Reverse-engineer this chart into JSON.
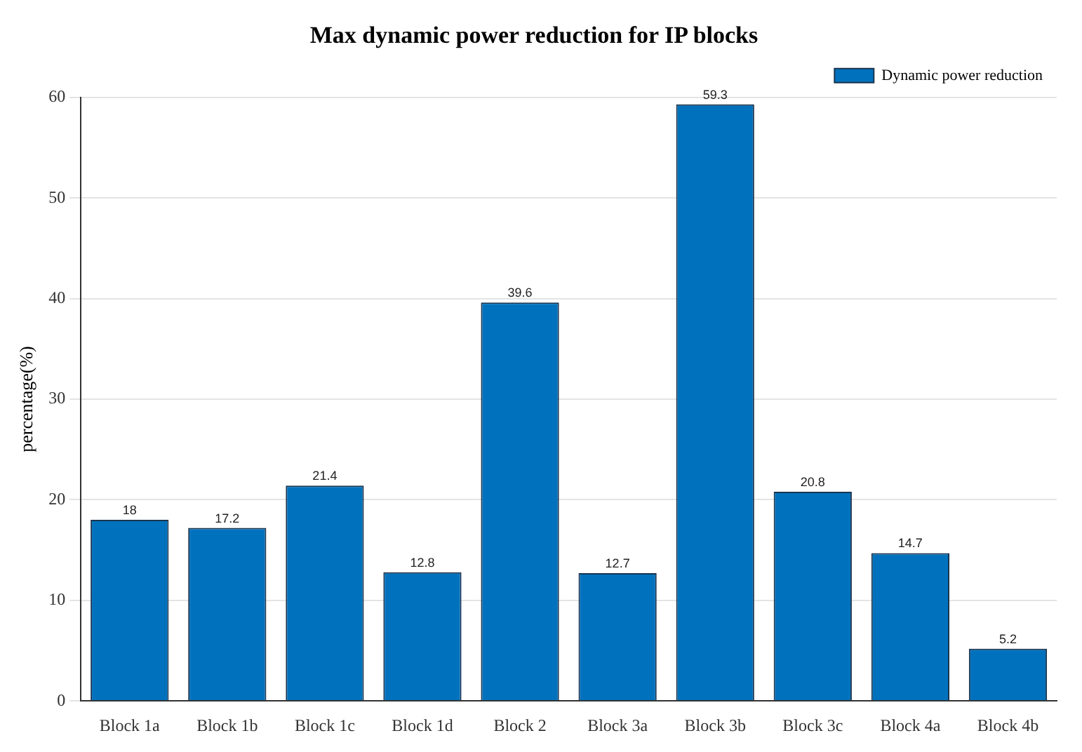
{
  "chart_data": {
    "type": "bar",
    "title": "Max dynamic power reduction for IP blocks",
    "ylabel": "percentage(%)",
    "categories": [
      "Block 1a",
      "Block 1b",
      "Block 1c",
      "Block 1d",
      "Block 2",
      "Block 3a",
      "Block 3b",
      "Block 3c",
      "Block 4a",
      "Block 4b"
    ],
    "series": [
      {
        "name": "Dynamic power reduction",
        "color": "#0072bd",
        "values": [
          18,
          17.2,
          21.4,
          12.8,
          39.6,
          12.7,
          59.3,
          20.8,
          14.7,
          5.2
        ]
      }
    ],
    "ylim": [
      0,
      60
    ],
    "yticks": [
      0,
      10,
      20,
      30,
      40,
      50,
      60
    ],
    "grid": "y",
    "legend": "top right",
    "data_labels": true
  }
}
